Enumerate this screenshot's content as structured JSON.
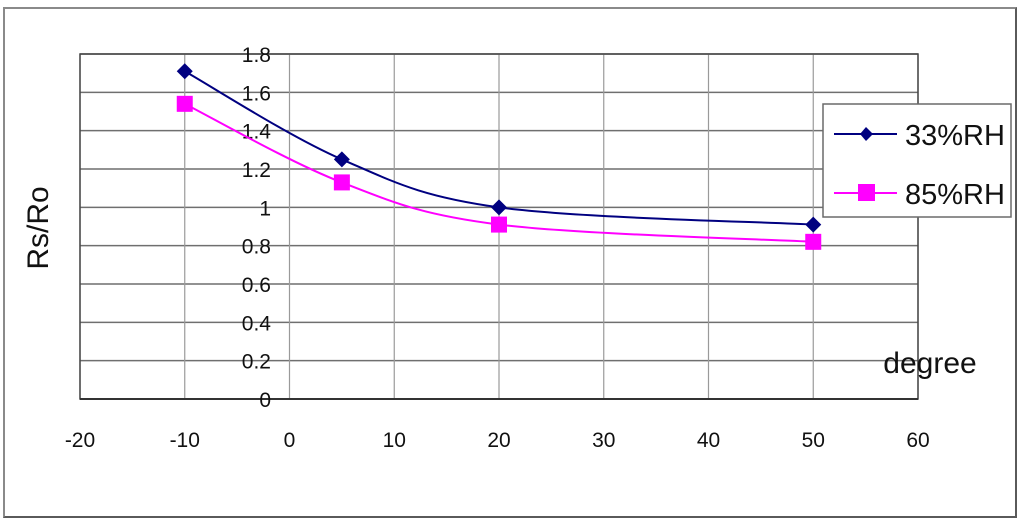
{
  "chart_data": {
    "type": "line",
    "title": "",
    "xlabel": "degree",
    "ylabel": "Rs/Ro",
    "xlim": [
      -20,
      60
    ],
    "ylim": [
      0,
      1.8
    ],
    "x_ticks": [
      "-20",
      "-10",
      "0",
      "10",
      "20",
      "30",
      "40",
      "50",
      "60"
    ],
    "y_ticks": [
      "0",
      "0.2",
      "0.4",
      "0.6",
      "0.8",
      "1",
      "1.2",
      "1.4",
      "1.6",
      "1.8"
    ],
    "grid": true,
    "legend_position": "right",
    "smoothed": true,
    "series": [
      {
        "name": "33%RH",
        "color": "#000080",
        "marker": "diamond",
        "x": [
          -10,
          5,
          20,
          50
        ],
        "values": [
          1.71,
          1.25,
          1.0,
          0.91
        ]
      },
      {
        "name": "85%RH",
        "color": "#ff00ff",
        "marker": "square",
        "x": [
          -10,
          5,
          20,
          50
        ],
        "values": [
          1.54,
          1.13,
          0.91,
          0.82
        ]
      }
    ]
  },
  "legend": {
    "items": [
      {
        "label": "33%RH"
      },
      {
        "label": "85%RH"
      }
    ]
  }
}
